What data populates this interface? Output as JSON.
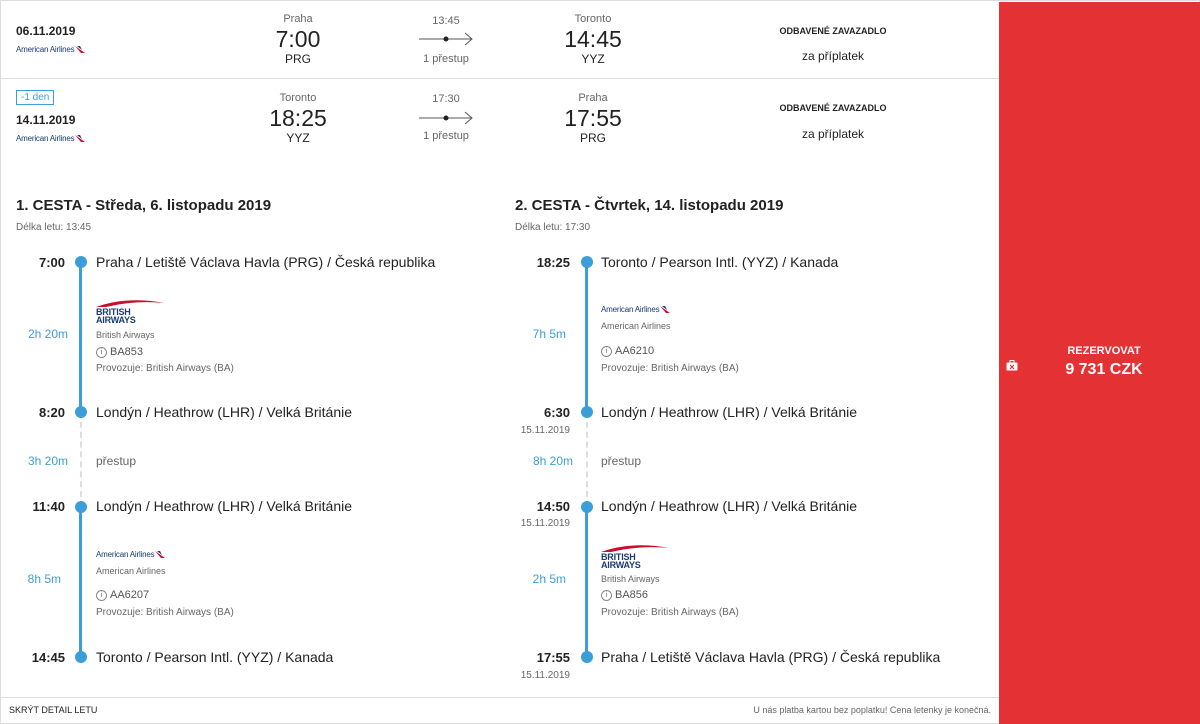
{
  "summary": {
    "rows": [
      {
        "badge": "",
        "date": "06.11.2019",
        "airline": "American Airlines",
        "from_city": "Praha",
        "from_time": "7:00",
        "from_code": "PRG",
        "duration": "13:45",
        "stops": "1 přestup",
        "to_city": "Toronto",
        "to_time": "14:45",
        "to_code": "YYZ",
        "baggage_title": "ODBAVENÉ ZAVAZADLO",
        "baggage_price": "za příplatek"
      },
      {
        "badge": "-1 den",
        "date": "14.11.2019",
        "airline": "American Airlines",
        "from_city": "Toronto",
        "from_time": "18:25",
        "from_code": "YYZ",
        "duration": "17:30",
        "stops": "1 přestup",
        "to_city": "Praha",
        "to_time": "17:55",
        "to_code": "PRG",
        "baggage_title": "ODBAVENÉ ZAVAZADLO",
        "baggage_price": "za příplatek"
      }
    ]
  },
  "legs": [
    {
      "title": "1. CESTA - Středa, 6. listopadu 2019",
      "length": "Délka letu: 13:45",
      "stop1": {
        "time": "7:00",
        "date": "",
        "place": "Praha / Letiště Václava Havla (PRG) / Česká republika"
      },
      "seg1": {
        "duration": "2h 20m",
        "logo_line1": "BRITISH",
        "logo_line2": "AIRWAYS",
        "airline": "British Airways",
        "flight": "BA853",
        "operator": "Provozuje: British Airways (BA)"
      },
      "stop2": {
        "time": "8:20",
        "date": "",
        "place": "Londýn / Heathrow (LHR) / Velká Británie"
      },
      "transfer": {
        "duration": "3h 20m",
        "label": "přestup"
      },
      "stop3": {
        "time": "11:40",
        "date": "",
        "place": "Londýn / Heathrow (LHR) / Velká Británie"
      },
      "seg2": {
        "duration": "8h 5m",
        "logo": "American Airlines",
        "airline": "American Airlines",
        "flight": "AA6207",
        "operator": "Provozuje: British Airways (BA)"
      },
      "stop4": {
        "time": "14:45",
        "date": "",
        "place": "Toronto / Pearson Intl. (YYZ) / Kanada"
      }
    },
    {
      "title": "2. CESTA - Čtvrtek, 14. listopadu 2019",
      "length": "Délka letu: 17:30",
      "stop1": {
        "time": "18:25",
        "date": "",
        "place": "Toronto / Pearson Intl. (YYZ) / Kanada"
      },
      "seg1": {
        "duration": "7h 5m",
        "logo": "American Airlines",
        "airline": "American Airlines",
        "flight": "AA6210",
        "operator": "Provozuje: British Airways (BA)"
      },
      "stop2": {
        "time": "6:30",
        "date": "15.11.2019",
        "place": "Londýn / Heathrow (LHR) / Velká Británie"
      },
      "transfer": {
        "duration": "8h 20m",
        "label": "přestup"
      },
      "stop3": {
        "time": "14:50",
        "date": "15.11.2019",
        "place": "Londýn / Heathrow (LHR) / Velká Británie"
      },
      "seg2": {
        "duration": "2h 5m",
        "logo_line1": "BRITISH",
        "logo_line2": "AIRWAYS",
        "airline": "British Airways",
        "flight": "BA856",
        "operator": "Provozuje: British Airways (BA)"
      },
      "stop4": {
        "time": "17:55",
        "date": "15.11.2019",
        "place": "Praha / Letiště Václava Havla (PRG) / Česká republika"
      }
    }
  ],
  "booking": {
    "label": "REZERVOVAT",
    "price": "9 731 CZK"
  },
  "footer": {
    "hide_detail": "SKRÝT DETAIL LETU",
    "note": "U nás platba kartou bez poplatku! Cena letenky je konečná."
  },
  "colors": {
    "accent": "#3c9ed8",
    "book_bg": "#e43134",
    "brand_navy": "#1a3b73"
  }
}
